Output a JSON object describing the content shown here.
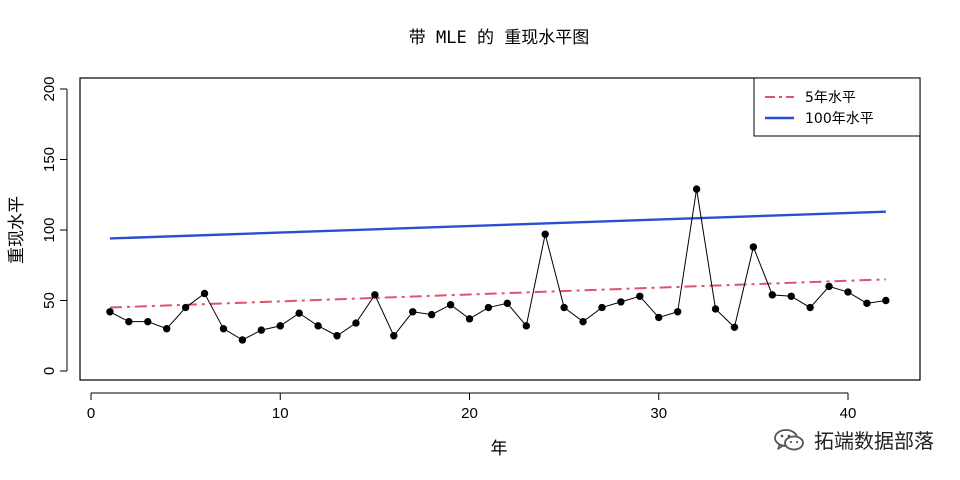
{
  "chart_data": {
    "type": "line",
    "title": "带 MLE 的 重现水平图",
    "xlabel": "年",
    "ylabel": "重现水平",
    "xlim": [
      0,
      43
    ],
    "ylim": [
      0,
      200
    ],
    "x_ticks": [
      0,
      10,
      20,
      30,
      40
    ],
    "y_ticks": [
      0,
      50,
      100,
      150,
      200
    ],
    "grid": false,
    "legend_position": "top-right",
    "x": [
      1,
      2,
      3,
      4,
      5,
      6,
      7,
      8,
      9,
      10,
      11,
      12,
      13,
      14,
      15,
      16,
      17,
      18,
      19,
      20,
      21,
      22,
      23,
      24,
      25,
      26,
      27,
      28,
      29,
      30,
      31,
      32,
      33,
      34,
      35,
      36,
      37,
      38,
      39,
      40,
      41,
      42
    ],
    "observed": [
      42,
      35,
      35,
      30,
      45,
      55,
      30,
      22,
      29,
      32,
      41,
      32,
      25,
      34,
      54,
      25,
      42,
      40,
      47,
      37,
      45,
      48,
      32,
      97,
      45,
      35,
      45,
      49,
      53,
      38,
      42,
      129,
      44,
      31,
      88,
      54,
      53,
      45,
      60,
      56,
      48,
      50
    ],
    "series": [
      {
        "name": "5年水平",
        "color": "#DF536B",
        "style": "dashdot",
        "x": [
          1,
          42
        ],
        "values": [
          45,
          65
        ]
      },
      {
        "name": "100年水平",
        "color": "#2B4ED1",
        "style": "solid",
        "x": [
          1,
          42
        ],
        "values": [
          94,
          113
        ]
      }
    ]
  },
  "watermark": {
    "text": "拓端数据部落",
    "icon": "wechat-icon"
  }
}
